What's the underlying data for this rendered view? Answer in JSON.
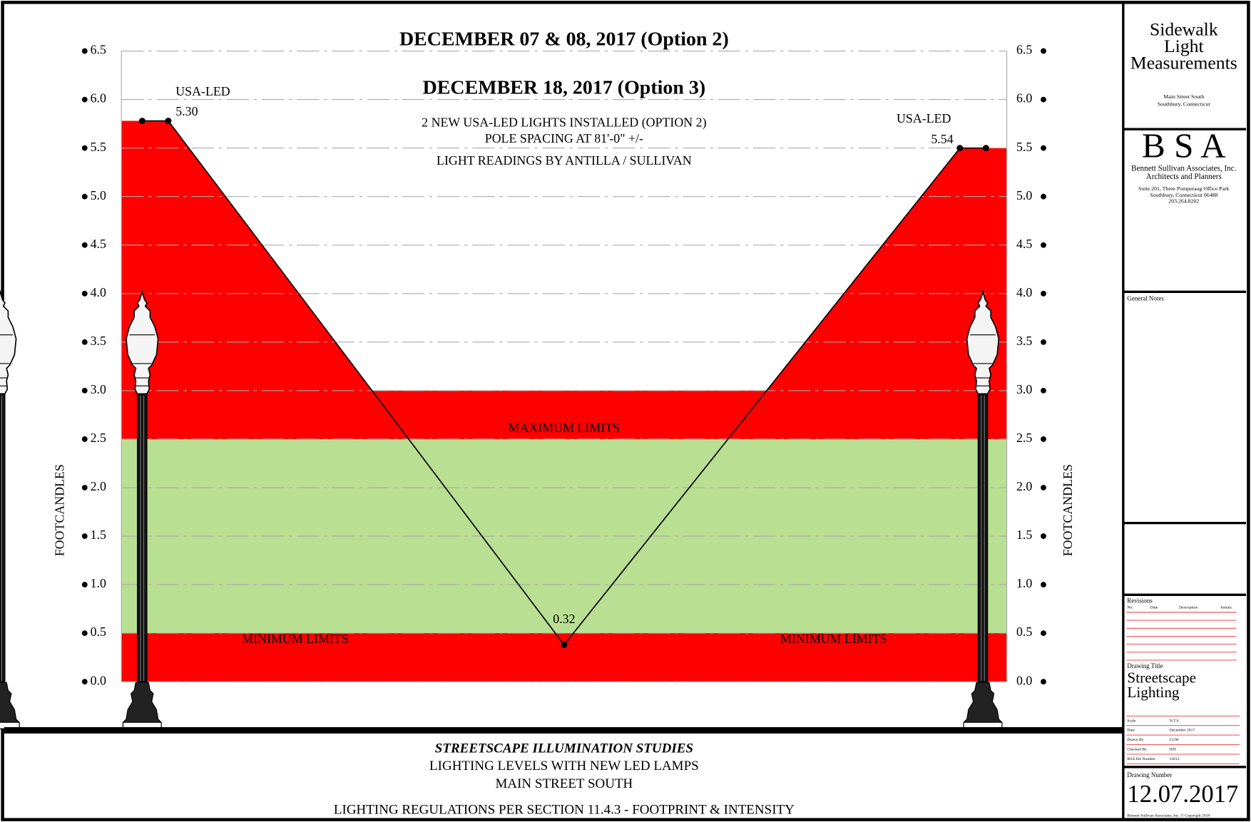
{
  "chart_data": {
    "type": "line",
    "title": "DECEMBER 07 & 08, 2017 (Option 2)",
    "subtitle": "DECEMBER 18, 2017 (Option 3)",
    "notes": [
      "2 NEW USA-LED LIGHTS INSTALLED (OPTION 2)",
      "POLE SPACING AT 81'-0\" +/-",
      "LIGHT READINGS BY ANTILLA / SULLIVAN"
    ],
    "y_label": "FOOTCANDLES",
    "x": [
      0,
      2.5,
      40.5,
      78.5,
      81
    ],
    "xlim": [
      -2,
      83
    ],
    "values": [
      5.78,
      5.78,
      0.38,
      5.5,
      5.5
    ],
    "color": "#000000",
    "area_color": "#ff0000",
    "annotations": [
      "USA-LED",
      "5.30",
      "USA-LED",
      "5.54",
      "0.32"
    ],
    "bands": [
      {
        "name": "MINIMUM LIMITS",
        "range": [
          0,
          0.5
        ],
        "color": "#ff0000"
      },
      {
        "range": [
          0.5,
          2.5
        ],
        "color": "#b9df92"
      },
      {
        "name": "MAXIMUM LIMITS",
        "range": [
          2.5,
          3.0
        ],
        "color": "#ff0000"
      }
    ],
    "ylim": [
      0,
      6.5
    ],
    "yticks": [
      {
        "value": 0,
        "label": "0.0"
      },
      0.5,
      {
        "value": 1,
        "label": "1.0"
      },
      1.5,
      {
        "value": 2,
        "label": "2.0"
      },
      2.5,
      {
        "value": 3,
        "label": "3.0"
      },
      3.5,
      {
        "value": 4,
        "label": "4.0"
      },
      4.5,
      {
        "value": 5,
        "label": "5.0"
      },
      5.5,
      {
        "value": 6,
        "label": "6.0"
      },
      6.5
    ],
    "grid": true
  },
  "footer": {
    "title": "STREETSCAPE ILLUMINATION STUDIES",
    "lines": [
      "LIGHTING LEVELS WITH NEW LED LAMPS",
      "MAIN STREET SOUTH",
      "LIGHTING REGULATIONS PER SECTION 11.4.3 - FOOTPRINT & INTENSITY"
    ]
  },
  "title_block": {
    "project": [
      "Sidewalk",
      "Light",
      "Measurements"
    ],
    "location": [
      "Main Street South",
      "Southbury, Connecticut"
    ],
    "firm_logo": "B S A",
    "firm": [
      "Bennett Sullivan Associates, Inc.",
      "Architects and Planners",
      "Suite 201,  Three Pomperaug Office Park",
      "Southbury, Connecticut  06488",
      "203.264.8202"
    ],
    "general_notes": "General Notes",
    "revisions": {
      "title": "Revisions",
      "columns": [
        "No.",
        "Date",
        "Description",
        "Initials"
      ]
    },
    "drawing_title_label": "Drawing Title",
    "drawing_title": [
      "Streetscape",
      "Lighting"
    ],
    "info": [
      [
        "Scale",
        "N.T.S."
      ],
      [
        "Date",
        "December 2017"
      ],
      [
        "Drawn By",
        "CGM"
      ],
      [
        "Checked By",
        "HJS"
      ],
      [
        "BSA Job Number",
        "13012"
      ]
    ],
    "drawing_number_label": "Drawing Number",
    "drawing_number": "12.07.2017",
    "copyright": "Bennett Sullivan Associates, Inc. © Copyright 2018"
  }
}
